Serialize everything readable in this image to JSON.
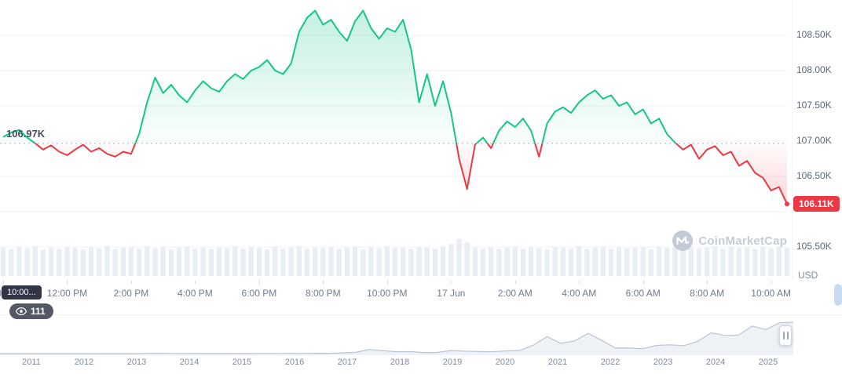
{
  "watermark": {
    "text": "CoinMarketCap"
  },
  "overlays": {
    "time_tooltip": "10:00...",
    "watch_count": "111"
  },
  "chart_data": {
    "type": "area",
    "unit": "USD",
    "interval_minutes": 15,
    "baseline_value": 106.97,
    "baseline_label": "106.97K",
    "current_price": 106.11,
    "current_price_label": "106.11K",
    "ylim": [
      105.4,
      109.0
    ],
    "y_grid": [
      108.5,
      108.0,
      107.5,
      107.0,
      106.5,
      106.0,
      105.5
    ],
    "y_ticks": [
      {
        "label": "108.50K",
        "value": 108.5
      },
      {
        "label": "108.00K",
        "value": 108.0
      },
      {
        "label": "107.50K",
        "value": 107.5
      },
      {
        "label": "107.00K",
        "value": 107.0
      },
      {
        "label": "106.50K",
        "value": 106.5
      },
      {
        "label": "105.50K",
        "value": 105.5
      }
    ],
    "x_tick_labels": [
      "10:00 AM",
      "12:00 PM",
      "2:00 PM",
      "4:00 PM",
      "6:00 PM",
      "8:00 PM",
      "10:00 PM",
      "17 Jun",
      "2:00 AM",
      "4:00 AM",
      "6:00 AM",
      "8:00 AM",
      "10:00 AM"
    ],
    "x_tick_every_points": 8,
    "colors": {
      "up": "#16c784",
      "down": "#ea3943",
      "grid": "#eff2f5",
      "baseline": "#a6b0c3",
      "volume": "#e9edf4",
      "axis_text": "#808a9d",
      "nav_line": "#b9c3d4",
      "nav_fill": "#eef2f7"
    },
    "points": [
      107.06,
      107.12,
      107.16,
      107.05,
      106.97,
      106.88,
      106.94,
      106.85,
      106.8,
      106.88,
      106.95,
      106.85,
      106.9,
      106.82,
      106.78,
      106.85,
      106.82,
      107.1,
      107.55,
      107.9,
      107.68,
      107.8,
      107.65,
      107.55,
      107.72,
      107.85,
      107.75,
      107.7,
      107.85,
      107.95,
      107.88,
      108.0,
      108.05,
      108.15,
      108.0,
      107.95,
      108.1,
      108.55,
      108.75,
      108.85,
      108.65,
      108.72,
      108.55,
      108.42,
      108.7,
      108.85,
      108.6,
      108.45,
      108.6,
      108.55,
      108.72,
      108.3,
      107.55,
      107.95,
      107.5,
      107.85,
      107.4,
      106.75,
      106.32,
      106.95,
      107.05,
      106.9,
      107.15,
      107.28,
      107.2,
      107.32,
      107.15,
      106.78,
      107.25,
      107.42,
      107.48,
      107.4,
      107.55,
      107.65,
      107.72,
      107.6,
      107.65,
      107.5,
      107.55,
      107.38,
      107.45,
      107.25,
      107.32,
      107.1,
      106.98,
      106.88,
      106.95,
      106.75,
      106.88,
      106.93,
      106.8,
      106.85,
      106.65,
      106.72,
      106.55,
      106.48,
      106.3,
      106.35,
      106.11
    ],
    "volume": [
      0.9,
      0.86,
      0.93,
      0.88,
      0.95,
      0.84,
      0.91,
      0.87,
      0.94,
      0.89,
      0.85,
      0.92,
      0.88,
      0.96,
      0.86,
      0.9,
      0.93,
      0.87,
      0.95,
      0.89,
      0.92,
      0.85,
      0.9,
      0.94,
      0.88,
      0.91,
      0.86,
      0.93,
      0.89,
      0.95,
      0.87,
      0.92,
      0.9,
      0.85,
      0.94,
      0.88,
      0.91,
      0.96,
      0.86,
      0.93,
      0.89,
      0.92,
      0.87,
      0.9,
      0.94,
      0.85,
      0.91,
      0.88,
      0.95,
      0.89,
      0.93,
      0.86,
      0.92,
      0.9,
      0.87,
      0.94,
      1.02,
      1.18,
      1.08,
      0.91,
      0.88,
      0.93,
      0.86,
      0.9,
      0.94,
      0.87,
      0.92,
      0.89,
      0.85,
      0.93,
      0.9,
      0.88,
      0.95,
      0.86,
      0.91,
      0.94,
      0.87,
      0.92,
      0.88,
      0.9,
      0.93,
      0.85,
      0.94,
      0.89,
      0.91,
      0.86,
      0.92,
      0.88,
      0.9,
      0.95,
      0.87,
      0.93,
      0.89,
      0.91,
      0.86,
      0.94,
      0.88,
      0.92,
      0.9
    ],
    "navigator": {
      "years": [
        "2011",
        "2012",
        "2013",
        "2014",
        "2015",
        "2016",
        "2017",
        "2018",
        "2019",
        "2020",
        "2021",
        "2022",
        "2023",
        "2024",
        "2025"
      ],
      "values": [
        0.003,
        0.005,
        0.01,
        0.005,
        0.005,
        0.006,
        0.01,
        0.013,
        0.03,
        0.1,
        0.13,
        0.75,
        0.8,
        0.6,
        0.5,
        0.32,
        0.24,
        0.26,
        0.24,
        0.43,
        0.42,
        0.67,
        0.61,
        0.96,
        1.1,
        2.5,
        4.3,
        14,
        10.2,
        6.4,
        6.6,
        3.7,
        4.1,
        10.8,
        8.3,
        7.2,
        6.4,
        9.1,
        10.8,
        29,
        58,
        35,
        43,
        69,
        45,
        19,
        19,
        16.5,
        28,
        30,
        27,
        42,
        71,
        62,
        63,
        94,
        82,
        105,
        107
      ]
    }
  }
}
